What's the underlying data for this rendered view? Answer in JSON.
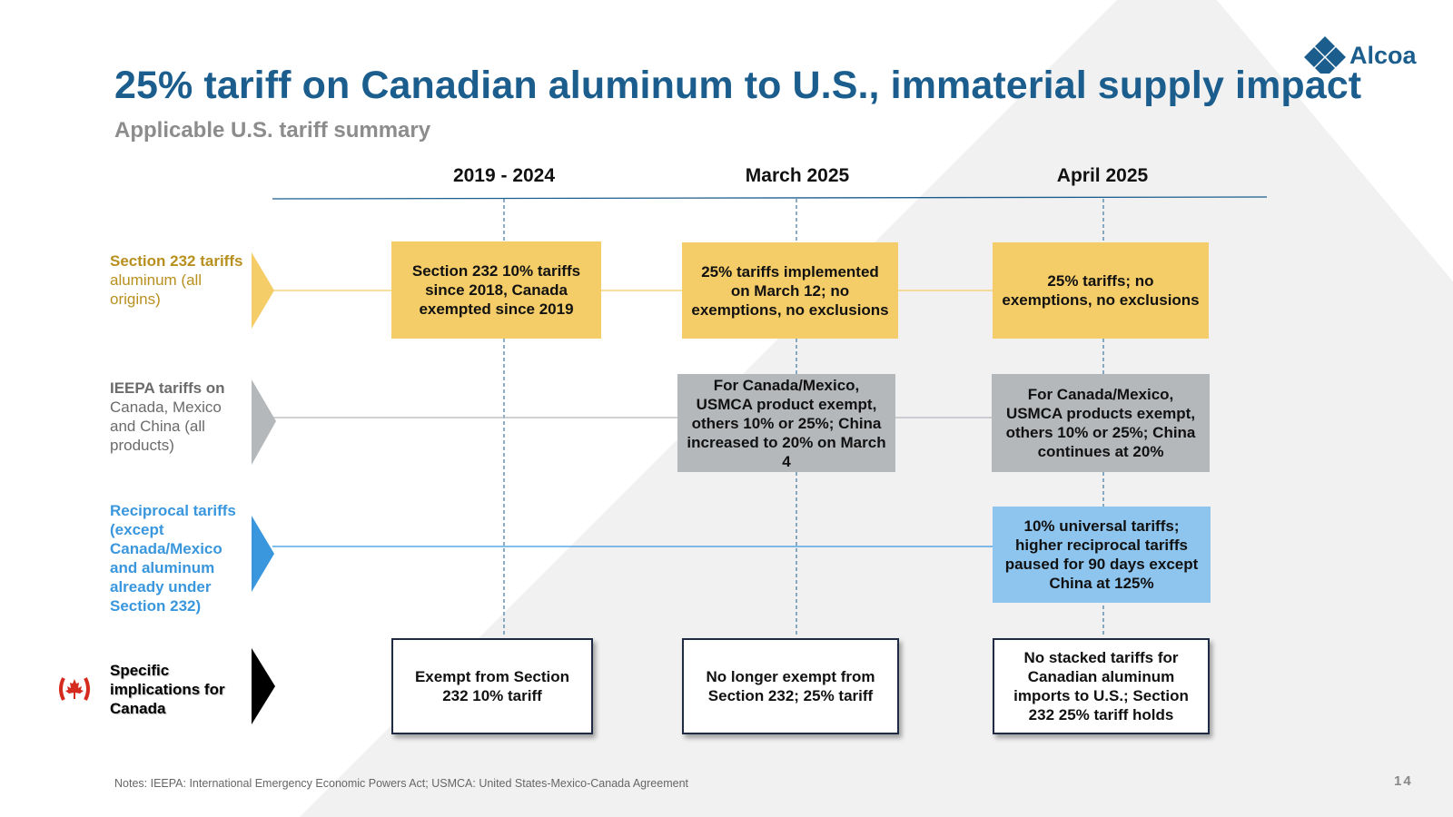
{
  "title": "25% tariff on Canadian aluminum to U.S., immaterial supply impact",
  "subtitle": "Applicable U.S. tariff summary",
  "logo": {
    "text": "Alcoa",
    "color": "#1b5e8e"
  },
  "columns": [
    "2019 - 2024",
    "March 2025",
    "April 2025"
  ],
  "rows": [
    {
      "label_parts": [
        {
          "text": "Section 232 tariffs",
          "bold": true
        },
        {
          "text": " aluminum (all origins)",
          "bold": false
        }
      ],
      "color": "#f5cd68"
    },
    {
      "label_parts": [
        {
          "text": "IEEPA tariffs on",
          "bold": true
        },
        {
          "text": " Canada, Mexico and China (all products)",
          "bold": false
        }
      ],
      "color": "#b5b8bb"
    },
    {
      "label_parts": [
        {
          "text": "Reciprocal tariffs (except Canada/Mexico and aluminum already under Section 232)",
          "bold": true
        }
      ],
      "color": "#3a97dd"
    },
    {
      "label_parts": [
        {
          "text": "Specific implications for Canada",
          "bold": true
        }
      ],
      "color": "#000000",
      "icon": "canada-flag-icon"
    }
  ],
  "cells": {
    "s232_2019": "Section 232 10% tariffs since 2018, Canada exempted since 2019",
    "s232_march": "25% tariffs implemented on March 12; no exemptions, no exclusions",
    "s232_april": "25% tariffs; no exemptions, no exclusions",
    "ieepa_march": "For Canada/Mexico, USMCA product exempt, others 10% or 25%; China increased to 20% on March 4",
    "ieepa_april": "For Canada/Mexico, USMCA products exempt, others 10% or 25%; China continues at 20%",
    "recip_april": "10% universal tariffs; higher reciprocal tariffs paused for 90 days except China at 125%",
    "canada_2019": "Exempt from Section 232 10% tariff",
    "canada_march": "No longer exempt from Section 232; 25% tariff",
    "canada_april": "No stacked tariffs for Canadian aluminum imports to U.S.; Section 232 25% tariff holds"
  },
  "notes": "Notes: IEEPA: International Emergency Economic Powers Act; USMCA: United States-Mexico-Canada Agreement",
  "page_number": "14",
  "colors": {
    "accent": "#1b5e8e",
    "section232": "#f5cd68",
    "ieepa": "#b5b8bb",
    "reciprocal": "#8ec5ee",
    "subtitle": "#8c8c8c"
  }
}
